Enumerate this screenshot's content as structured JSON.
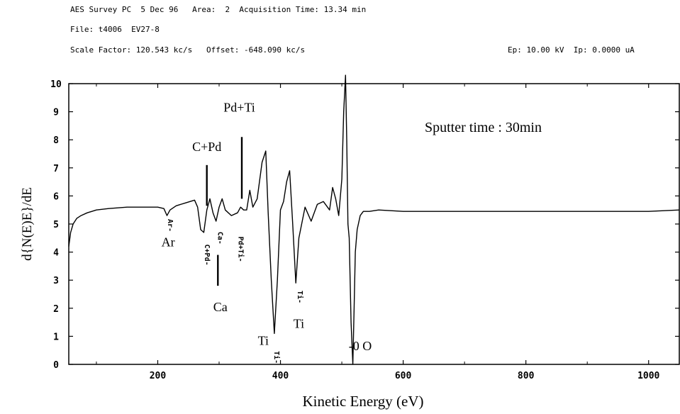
{
  "header": {
    "line1": "AES Survey PC  5 Dec 96   Area:  2  Acquisition Time: 13.34 min",
    "line2": "File: t4006  EV27-8",
    "line3": "Scale Factor: 120.543 kc/s   Offset: -648.090 kc/s",
    "line3_right": "Ep: 10.00 kV  Ip: 0.0000 uA"
  },
  "chart_data": {
    "type": "line",
    "xlabel": "Kinetic Energy (eV)",
    "ylabel": "d{N(E)E}/dE",
    "xlim": [
      55,
      1050
    ],
    "ylim": [
      0,
      10
    ],
    "x_ticks": [
      200,
      400,
      600,
      800,
      1000
    ],
    "y_ticks": [
      0,
      1,
      2,
      3,
      4,
      5,
      6,
      7,
      8,
      9,
      10
    ],
    "grid": false,
    "inset_text": "Sputter time : 30min",
    "series": [
      {
        "x": [
          55,
          58,
          62,
          68,
          75,
          85,
          100,
          120,
          150,
          180,
          200,
          210,
          215,
          220,
          230,
          245,
          260,
          265,
          270,
          275,
          280,
          285,
          290,
          295,
          300,
          305,
          310,
          320,
          330,
          335,
          340,
          345,
          350,
          355,
          362,
          370,
          376,
          380,
          385,
          390,
          395,
          400,
          405,
          410,
          415,
          420,
          425,
          430,
          440,
          450,
          460,
          470,
          480,
          485,
          490,
          495,
          500,
          503,
          506,
          508,
          510,
          512,
          515,
          518,
          520,
          522,
          525,
          530,
          535,
          545,
          560,
          600,
          700,
          800,
          900,
          1000,
          1050
        ],
        "y": [
          4.2,
          4.7,
          5.0,
          5.2,
          5.3,
          5.4,
          5.5,
          5.55,
          5.6,
          5.6,
          5.6,
          5.55,
          5.3,
          5.5,
          5.65,
          5.75,
          5.85,
          5.6,
          4.8,
          4.7,
          5.5,
          5.9,
          5.4,
          5.1,
          5.6,
          5.9,
          5.5,
          5.3,
          5.4,
          5.6,
          5.5,
          5.5,
          6.2,
          5.6,
          5.9,
          7.2,
          7.6,
          5.4,
          3.0,
          1.1,
          3.0,
          5.5,
          5.8,
          6.5,
          6.9,
          5.0,
          2.9,
          4.5,
          5.6,
          5.1,
          5.7,
          5.8,
          5.5,
          6.3,
          5.9,
          5.3,
          6.6,
          9.0,
          10.3,
          8.0,
          5.0,
          4.5,
          1.5,
          0.0,
          2.0,
          4.0,
          4.8,
          5.3,
          5.45,
          5.45,
          5.5,
          5.45,
          5.45,
          5.45,
          5.45,
          5.45,
          5.5
        ]
      }
    ],
    "annotations": [
      {
        "text": "C+Pd",
        "x": 280,
        "y": 7.6,
        "style": "serif"
      },
      {
        "text": "Pd+Ti",
        "x": 333,
        "y": 9.0,
        "style": "serif"
      },
      {
        "text": "Ar",
        "x": 217,
        "y": 4.2,
        "style": "serif"
      },
      {
        "text": "Ca",
        "x": 302,
        "y": 1.9,
        "style": "serif"
      },
      {
        "text": "Ti",
        "x": 372,
        "y": 0.7,
        "style": "serif"
      },
      {
        "text": "Ti",
        "x": 430,
        "y": 1.3,
        "style": "serif"
      },
      {
        "text": "-0 O",
        "x": 530,
        "y": 0.5,
        "style": "serif"
      },
      {
        "text": "Ar-",
        "x": 217,
        "y": 4.95,
        "style": "mono-vertical"
      },
      {
        "text": "C+Pd-",
        "x": 277,
        "y": 3.9,
        "style": "mono-vertical"
      },
      {
        "text": "Ca-",
        "x": 298,
        "y": 4.5,
        "style": "mono-vertical"
      },
      {
        "text": "Pd+Ti-",
        "x": 332,
        "y": 4.1,
        "style": "mono-vertical"
      },
      {
        "text": "Ti-",
        "x": 390,
        "y": 0.25,
        "style": "mono-vertical"
      },
      {
        "text": "Ti-",
        "x": 428,
        "y": 2.4,
        "style": "mono-vertical"
      }
    ],
    "marker_lines": [
      {
        "x": 280,
        "y_from": 5.65,
        "y_to": 7.1
      },
      {
        "x": 337,
        "y_from": 5.9,
        "y_to": 8.1
      },
      {
        "x": 298,
        "y_from": 2.8,
        "y_to": 3.9
      }
    ]
  }
}
